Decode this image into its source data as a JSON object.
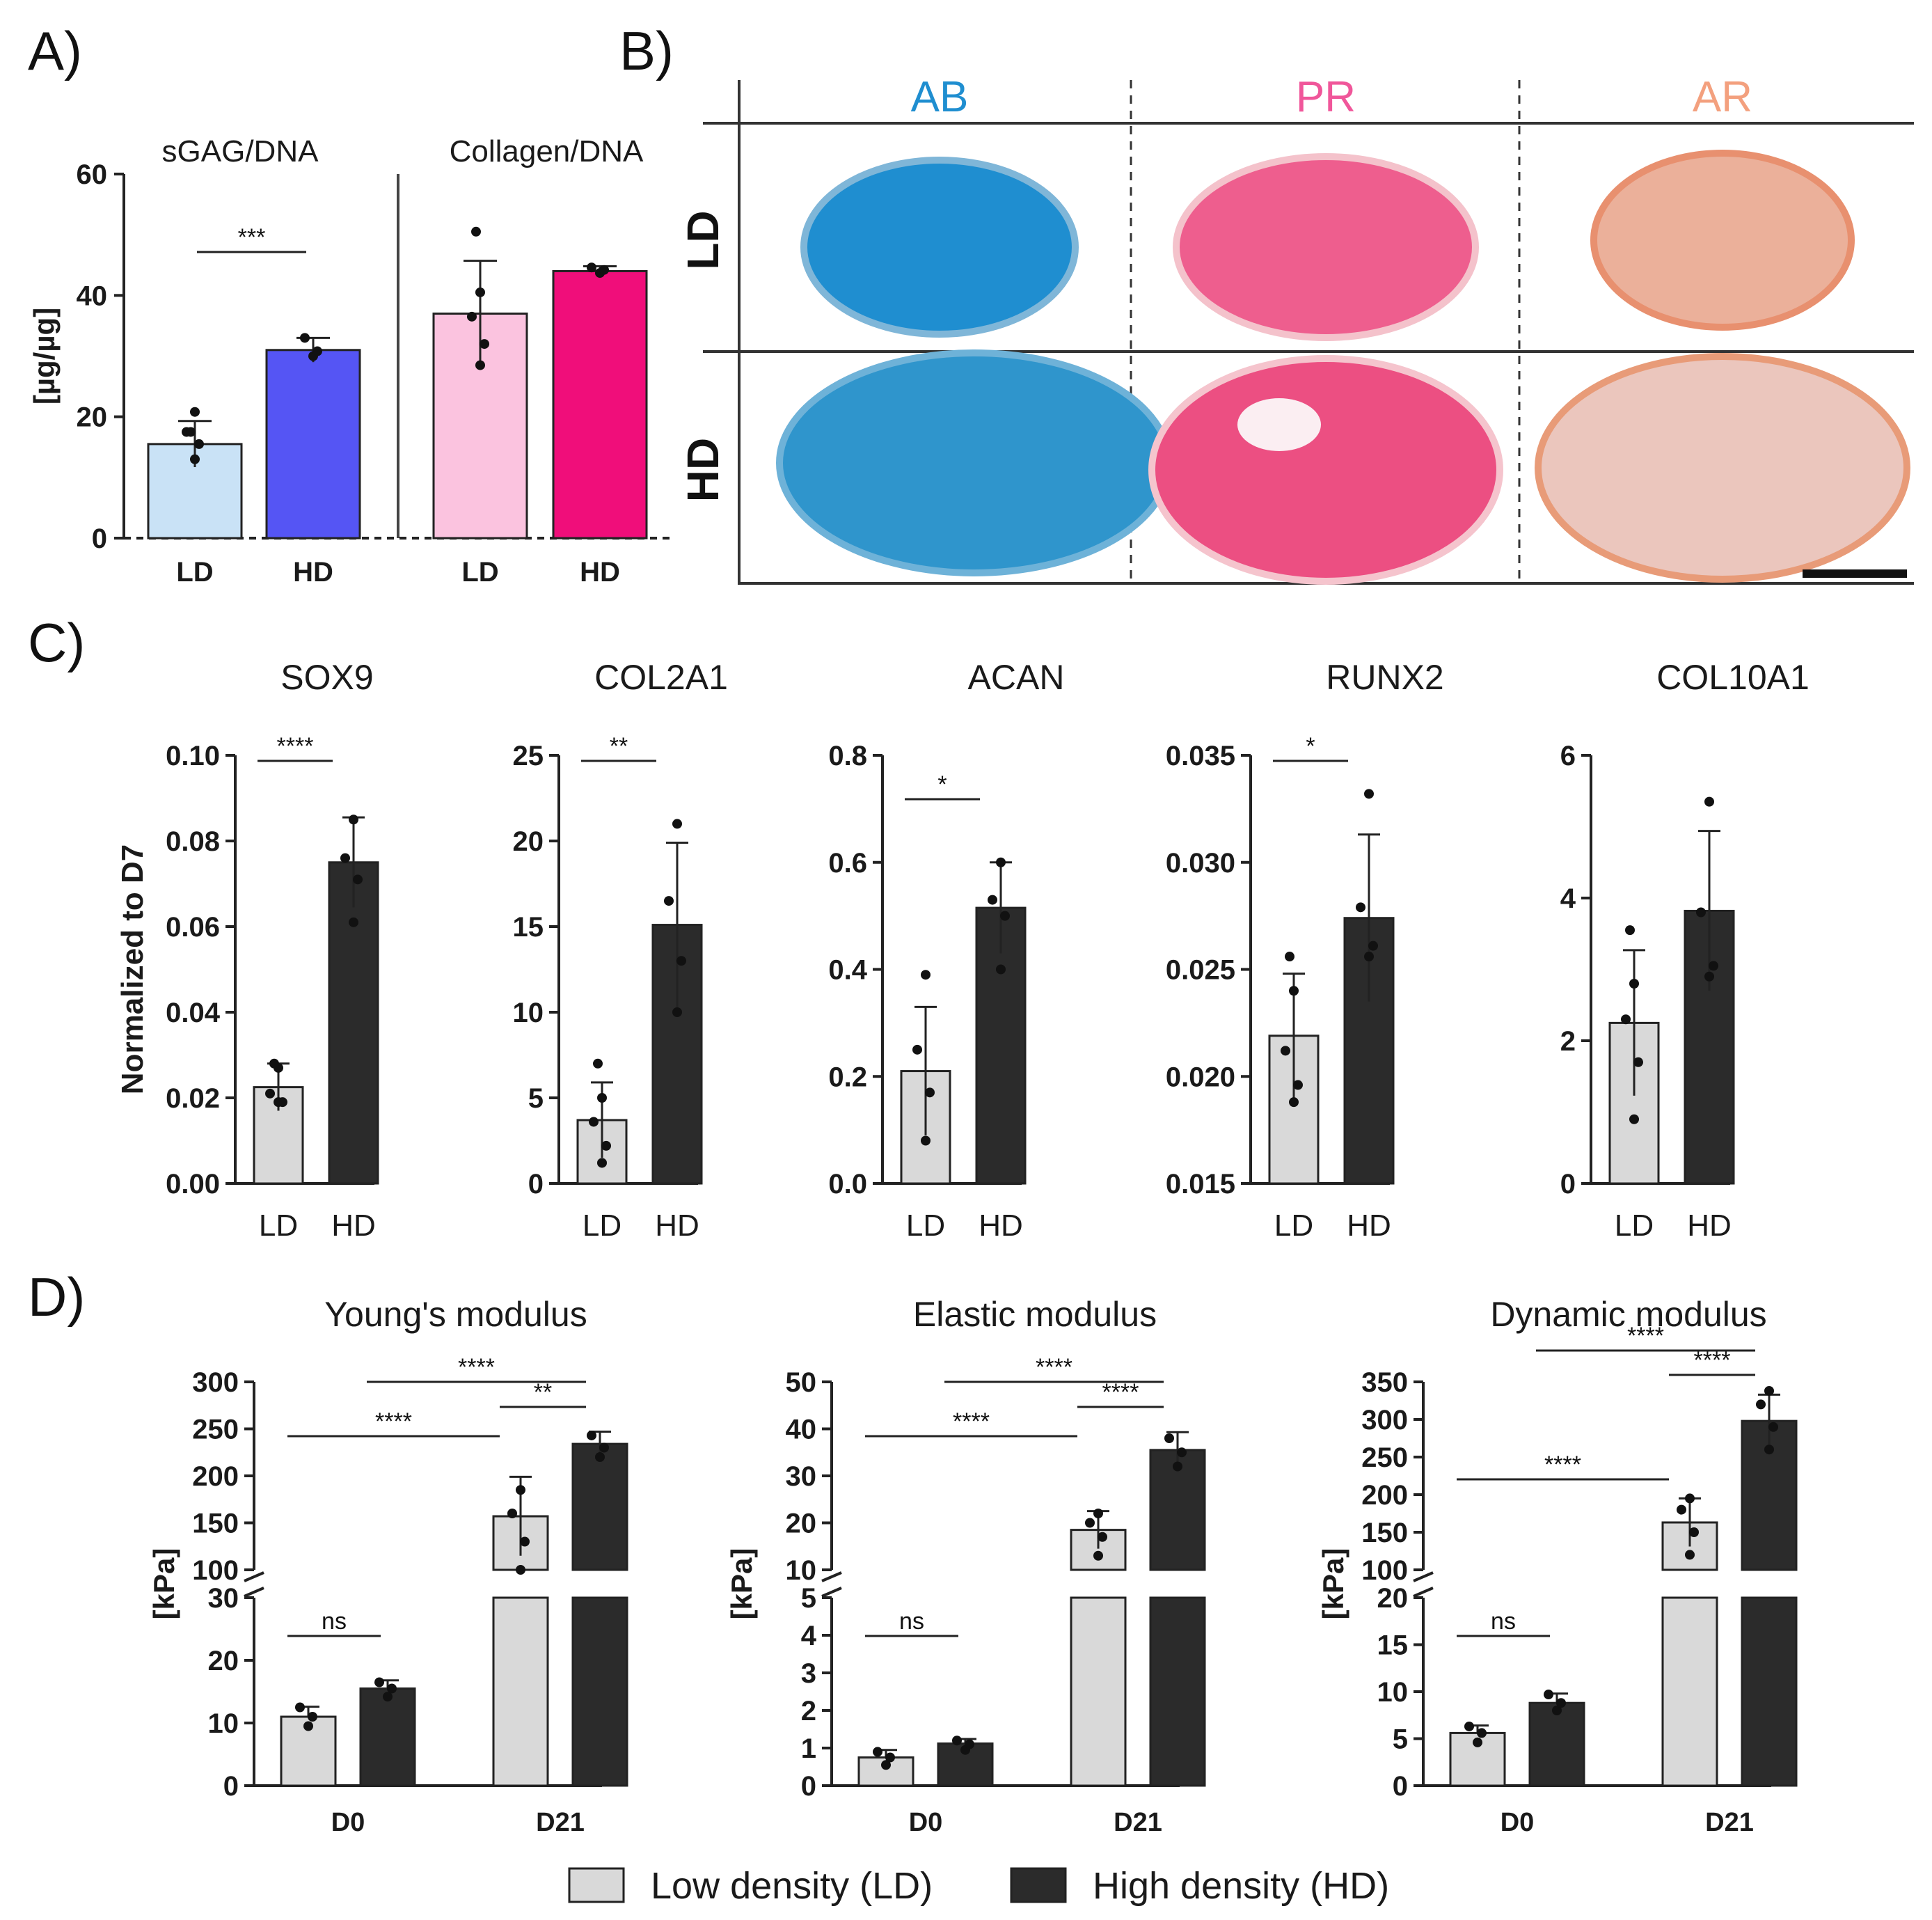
{
  "panel_labels": [
    "A)",
    "B)",
    "C)",
    "D)"
  ],
  "colors": {
    "ld_blue": "#c9e2f6",
    "hd_blue": "#5555f4",
    "ld_pink": "#fbc3df",
    "hd_pink": "#f00e7a",
    "ld_grey": "#d9d9d9",
    "hd_dark": "#2b2b2b",
    "ab": "#1f8ed0",
    "pr": "#f0569a",
    "ar": "#f3a07e"
  },
  "chart_data": [
    {
      "id": "A",
      "type": "bar",
      "ylabel": "[µg/µg]",
      "ylim": [
        0,
        60
      ],
      "yticks": [
        "0",
        "20",
        "40",
        "60"
      ],
      "groups": [
        {
          "title": "sGAG/DNA",
          "categories": [
            "LD",
            "HD"
          ],
          "values": [
            15.5,
            31
          ],
          "errors": [
            3.8,
            2.0
          ],
          "sig": "***",
          "points": [
            [
              13,
              15.5,
              17.5,
              20.8,
              17.5
            ],
            [
              30,
              30.8,
              33
            ]
          ]
        },
        {
          "title": "Collagen/DNA",
          "categories": [
            "LD",
            "HD"
          ],
          "values": [
            37,
            44
          ],
          "errors": [
            8.7,
            0.8
          ],
          "sig": "",
          "points": [
            [
              28.5,
              32,
              36.5,
              40.5,
              50.5
            ],
            [
              43.7,
              44.2,
              44.6
            ]
          ]
        }
      ]
    },
    {
      "id": "B",
      "type": "table",
      "columns": [
        "AB",
        "PR",
        "AR"
      ],
      "rows": [
        "LD",
        "HD"
      ]
    },
    {
      "id": "C",
      "type": "bar",
      "ylabel": "Normalized to D7",
      "categories": [
        "LD",
        "HD"
      ],
      "panels": [
        {
          "title": "SOX9",
          "ylim": [
            0,
            0.1
          ],
          "yticks": [
            "0.00",
            "0.02",
            "0.04",
            "0.06",
            "0.08",
            "0.10"
          ],
          "values": [
            0.0225,
            0.075
          ],
          "errors": [
            0.0055,
            0.0105
          ],
          "sig": "****",
          "points": [
            [
              0.019,
              0.019,
              0.021,
              0.027,
              0.028
            ],
            [
              0.061,
              0.071,
              0.076,
              0.085
            ]
          ]
        },
        {
          "title": "COL2A1",
          "ylim": [
            0,
            25
          ],
          "yticks": [
            "0",
            "5",
            "10",
            "15",
            "20",
            "25"
          ],
          "values": [
            3.7,
            15.1
          ],
          "errors": [
            2.2,
            4.8
          ],
          "sig": "**",
          "points": [
            [
              1.2,
              2.2,
              3.6,
              5.0,
              7.0
            ],
            [
              10.0,
              13.0,
              16.5,
              21.0
            ]
          ]
        },
        {
          "title": "ACAN",
          "ylim": [
            0,
            0.8
          ],
          "yticks": [
            "0.0",
            "0.2",
            "0.4",
            "0.6",
            "0.8"
          ],
          "values": [
            0.21,
            0.515
          ],
          "errors": [
            0.12,
            0.085
          ],
          "sig": "*",
          "points": [
            [
              0.08,
              0.17,
              0.25,
              0.39
            ],
            [
              0.4,
              0.5,
              0.53,
              0.6
            ]
          ]
        },
        {
          "title": "RUNX2",
          "ylim": [
            0.015,
            0.035
          ],
          "yticks": [
            "0.015",
            "0.020",
            "0.025",
            "0.030",
            "0.035"
          ],
          "values": [
            0.0219,
            0.0274
          ],
          "errors": [
            0.0029,
            0.0039
          ],
          "sig": "*",
          "points": [
            [
              0.0188,
              0.0196,
              0.0212,
              0.024,
              0.0256
            ],
            [
              0.0256,
              0.0261,
              0.0279,
              0.0332
            ]
          ]
        },
        {
          "title": "COL10A1",
          "ylim": [
            0,
            6
          ],
          "yticks": [
            "0",
            "2",
            "4",
            "6"
          ],
          "values": [
            2.25,
            3.82
          ],
          "errors": [
            1.02,
            1.12
          ],
          "sig": "",
          "points": [
            [
              0.9,
              1.7,
              2.3,
              2.8,
              3.55
            ],
            [
              2.9,
              3.05,
              3.8,
              5.35
            ]
          ]
        }
      ]
    },
    {
      "id": "D",
      "type": "bar",
      "ylabel": "[kPa]",
      "categories": [
        "D0",
        "D21"
      ],
      "series_names": [
        "Low density (LD)",
        "High density (HD)"
      ],
      "panels": [
        {
          "title": "Young's modulus",
          "lower": {
            "ylim": [
              0,
              30
            ],
            "yticks": [
              "0",
              "10",
              "20",
              "30"
            ]
          },
          "upper": {
            "ylim": [
              100,
              300
            ],
            "yticks": [
              "100",
              "150",
              "200",
              "250",
              "300"
            ]
          },
          "values": {
            "D0": [
              11,
              15.5
            ],
            "D21": [
              157,
              234
            ]
          },
          "errors": {
            "D0": [
              1.6,
              1.3
            ],
            "D21": [
              42,
              13
            ]
          },
          "points": {
            "D0": [
              [
                9.5,
                11,
                12.5
              ],
              [
                14.2,
                15.5,
                16.5
              ]
            ],
            "D21": [
              [
                100,
                130,
                160,
                185
              ],
              [
                220,
                230,
                243
              ]
            ]
          },
          "sig": {
            "d0": "ns",
            "a": "****",
            "b": "****",
            "c": "**"
          }
        },
        {
          "title": "Elastic modulus",
          "lower": {
            "ylim": [
              0,
              5
            ],
            "yticks": [
              "0",
              "1",
              "2",
              "3",
              "4",
              "5"
            ]
          },
          "upper": {
            "ylim": [
              10,
              50
            ],
            "yticks": [
              "10",
              "20",
              "30",
              "40",
              "50"
            ]
          },
          "values": {
            "D0": [
              0.75,
              1.12
            ],
            "D21": [
              18.5,
              35.5
            ]
          },
          "errors": {
            "D0": [
              0.2,
              0.12
            ],
            "D21": [
              4,
              3.8
            ]
          },
          "points": {
            "D0": [
              [
                0.55,
                0.75,
                0.9
              ],
              [
                0.95,
                1.1,
                1.2
              ]
            ],
            "D21": [
              [
                13,
                17,
                20,
                22
              ],
              [
                32,
                35,
                38
              ]
            ]
          },
          "sig": {
            "d0": "ns",
            "a": "****",
            "b": "****",
            "c": "****"
          }
        },
        {
          "title": "Dynamic modulus",
          "lower": {
            "ylim": [
              0,
              20
            ],
            "yticks": [
              "0",
              "5",
              "10",
              "15",
              "20"
            ]
          },
          "upper": {
            "ylim": [
              100,
              350
            ],
            "yticks": [
              "100",
              "150",
              "200",
              "250",
              "300",
              "350"
            ]
          },
          "values": {
            "D0": [
              5.6,
              8.8
            ],
            "D21": [
              163,
              298
            ]
          },
          "errors": {
            "D0": [
              0.8,
              1.0
            ],
            "D21": [
              32,
              35
            ]
          },
          "points": {
            "D0": [
              [
                4.6,
                5.6,
                6.3
              ],
              [
                8.0,
                8.8,
                9.7
              ]
            ],
            "D21": [
              [
                120,
                150,
                180,
                195
              ],
              [
                260,
                290,
                320,
                338
              ]
            ]
          },
          "sig": {
            "d0": "ns",
            "a": "****",
            "b": "****",
            "c": "****"
          }
        }
      ]
    }
  ],
  "legend": {
    "ld": "Low density  (LD)",
    "hd": "High density (HD)"
  }
}
